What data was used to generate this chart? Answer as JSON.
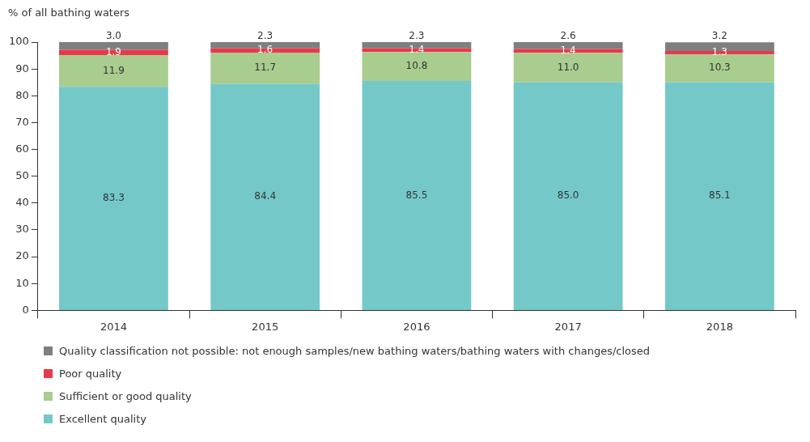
{
  "chart_data": {
    "type": "bar",
    "ylabel": "% of all bathing waters",
    "categories": [
      "2014",
      "2015",
      "2016",
      "2017",
      "2018"
    ],
    "stacked": true,
    "series": [
      {
        "name": "Excellent quality",
        "color": "#74c9c8",
        "values": [
          83.3,
          84.4,
          85.5,
          85.0,
          85.1
        ],
        "value_labels": [
          "83.3",
          "84.4",
          "85.5",
          "85.0",
          "85.1"
        ]
      },
      {
        "name": "Sufficient or good quality",
        "color": "#a9cc8f",
        "values": [
          11.9,
          11.7,
          10.8,
          11.0,
          10.3
        ],
        "value_labels": [
          "11.9",
          "11.7",
          "10.8",
          "11.0",
          "10.3"
        ]
      },
      {
        "name": "Poor quality",
        "color": "#e8394a",
        "values": [
          1.9,
          1.6,
          1.4,
          1.4,
          1.3
        ],
        "value_labels": [
          "1.9",
          "1.6",
          "1.4",
          "1.4",
          "1.3"
        ]
      },
      {
        "name": "Quality classification not possible: not enough samples/new bathing waters/bathing waters with changes/closed",
        "color": "#7f7f7f",
        "values": [
          3.0,
          2.3,
          2.3,
          2.6,
          3.2
        ],
        "value_labels": [
          "3.0",
          "2.3",
          "2.3",
          "2.6",
          "3.2"
        ]
      }
    ],
    "ylim": [
      0,
      100
    ],
    "yticks": [
      0,
      10,
      20,
      30,
      40,
      50,
      60,
      70,
      80,
      90,
      100
    ],
    "grid": false,
    "legend": "bottom"
  }
}
